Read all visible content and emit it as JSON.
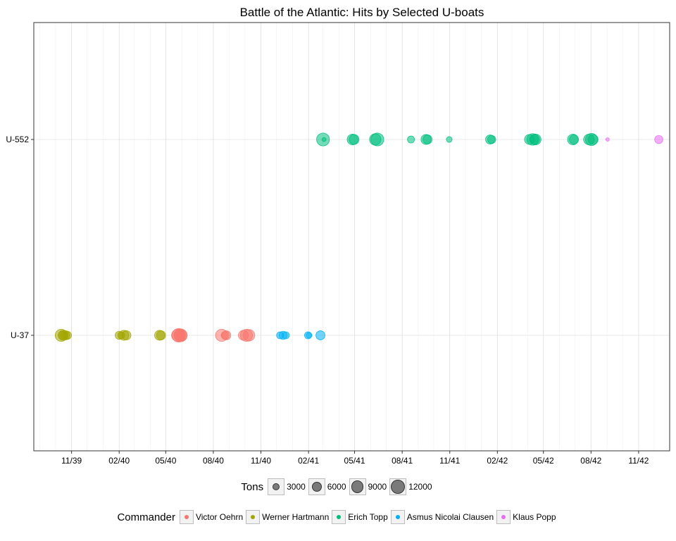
{
  "chart_data": {
    "type": "scatter",
    "title": "Battle of the Atlantic: Hits by Selected U-boats",
    "xlabel": "",
    "ylabel": "",
    "x_range": [
      "1939-08-20",
      "1942-12-31"
    ],
    "x_ticks": [
      {
        "label": "11/39",
        "date": "1939-11-01"
      },
      {
        "label": "02/40",
        "date": "1940-02-01"
      },
      {
        "label": "05/40",
        "date": "1940-05-01"
      },
      {
        "label": "08/40",
        "date": "1940-08-01"
      },
      {
        "label": "11/40",
        "date": "1940-11-01"
      },
      {
        "label": "02/41",
        "date": "1941-02-01"
      },
      {
        "label": "05/41",
        "date": "1941-05-01"
      },
      {
        "label": "08/41",
        "date": "1941-08-01"
      },
      {
        "label": "11/41",
        "date": "1941-11-01"
      },
      {
        "label": "02/42",
        "date": "1942-02-01"
      },
      {
        "label": "05/42",
        "date": "1942-05-01"
      },
      {
        "label": "08/42",
        "date": "1942-08-01"
      },
      {
        "label": "11/42",
        "date": "1942-11-01"
      }
    ],
    "categories": [
      "U-37",
      "U-552"
    ],
    "grid": true,
    "size_legend": {
      "title": "Tons",
      "breaks": [
        3000,
        6000,
        9000,
        12000
      ],
      "labels": [
        "3000",
        "6000",
        "9000",
        "12000"
      ]
    },
    "color_legend": {
      "title": "Commander",
      "placement": "bottom"
    },
    "series": [
      {
        "name": "Victor Oehrn",
        "color": "#F8766D",
        "points": [
          {
            "date": "1940-05-24",
            "boat": "U-37",
            "tons": 9000
          },
          {
            "date": "1940-05-26",
            "boat": "U-37",
            "tons": 11000
          },
          {
            "date": "1940-05-28",
            "boat": "U-37",
            "tons": 8000
          },
          {
            "date": "1940-05-30",
            "boat": "U-37",
            "tons": 10000
          },
          {
            "date": "1940-06-01",
            "boat": "U-37",
            "tons": 7000
          },
          {
            "date": "1940-08-17",
            "boat": "U-37",
            "tons": 9000
          },
          {
            "date": "1940-08-24",
            "boat": "U-37",
            "tons": 4000
          },
          {
            "date": "1940-08-26",
            "boat": "U-37",
            "tons": 5000
          },
          {
            "date": "1940-09-28",
            "boat": "U-37",
            "tons": 6000
          },
          {
            "date": "1940-10-04",
            "boat": "U-37",
            "tons": 9000
          },
          {
            "date": "1940-10-09",
            "boat": "U-37",
            "tons": 8000
          }
        ]
      },
      {
        "name": "Werner Hartmann",
        "color": "#A3A500",
        "points": [
          {
            "date": "1939-10-12",
            "boat": "U-37",
            "tons": 9000
          },
          {
            "date": "1939-10-14",
            "boat": "U-37",
            "tons": 4000
          },
          {
            "date": "1939-10-16",
            "boat": "U-37",
            "tons": 6000
          },
          {
            "date": "1939-10-20",
            "boat": "U-37",
            "tons": 5000
          },
          {
            "date": "1939-10-24",
            "boat": "U-37",
            "tons": 4000
          },
          {
            "date": "1940-02-01",
            "boat": "U-37",
            "tons": 4000
          },
          {
            "date": "1940-02-05",
            "boat": "U-37",
            "tons": 3000
          },
          {
            "date": "1940-02-10",
            "boat": "U-37",
            "tons": 6000
          },
          {
            "date": "1940-02-15",
            "boat": "U-37",
            "tons": 5000
          },
          {
            "date": "1940-04-19",
            "boat": "U-37",
            "tons": 6000
          },
          {
            "date": "1940-04-22",
            "boat": "U-37",
            "tons": 5000
          }
        ]
      },
      {
        "name": "Erich Topp",
        "color": "#00BF7D",
        "points": [
          {
            "date": "1941-03-01",
            "boat": "U-552",
            "tons": 10000
          },
          {
            "date": "1941-03-03",
            "boat": "U-552",
            "tons": 1000
          },
          {
            "date": "1941-04-27",
            "boat": "U-552",
            "tons": 7000
          },
          {
            "date": "1941-04-30",
            "boat": "U-552",
            "tons": 6000
          },
          {
            "date": "1941-06-10",
            "boat": "U-552",
            "tons": 8000
          },
          {
            "date": "1941-06-14",
            "boat": "U-552",
            "tons": 10000
          },
          {
            "date": "1941-08-18",
            "boat": "U-552",
            "tons": 3000
          },
          {
            "date": "1941-09-16",
            "boat": "U-552",
            "tons": 6000
          },
          {
            "date": "1941-09-19",
            "boat": "U-552",
            "tons": 5000
          },
          {
            "date": "1941-10-31",
            "boat": "U-552",
            "tons": 2000
          },
          {
            "date": "1942-01-18",
            "boat": "U-552",
            "tons": 5000
          },
          {
            "date": "1942-01-21",
            "boat": "U-552",
            "tons": 4000
          },
          {
            "date": "1942-04-04",
            "boat": "U-552",
            "tons": 6000
          },
          {
            "date": "1942-04-10",
            "boat": "U-552",
            "tons": 8000
          },
          {
            "date": "1942-04-14",
            "boat": "U-552",
            "tons": 6000
          },
          {
            "date": "1942-04-16",
            "boat": "U-552",
            "tons": 7000
          },
          {
            "date": "1942-06-27",
            "boat": "U-552",
            "tons": 7000
          },
          {
            "date": "1942-06-29",
            "boat": "U-552",
            "tons": 5000
          },
          {
            "date": "1942-07-28",
            "boat": "U-552",
            "tons": 7000
          },
          {
            "date": "1942-08-02",
            "boat": "U-552",
            "tons": 9000
          },
          {
            "date": "1942-08-05",
            "boat": "U-552",
            "tons": 6000
          }
        ]
      },
      {
        "name": "Asmus Nicolai Clausen",
        "color": "#00B0F6",
        "points": [
          {
            "date": "1940-12-08",
            "boat": "U-37",
            "tons": 3000
          },
          {
            "date": "1940-12-14",
            "boat": "U-37",
            "tons": 4000
          },
          {
            "date": "1940-12-19",
            "boat": "U-37",
            "tons": 3000
          },
          {
            "date": "1941-01-31",
            "boat": "U-37",
            "tons": 3000
          },
          {
            "date": "1941-02-02",
            "boat": "U-37",
            "tons": 2000
          },
          {
            "date": "1941-02-24",
            "boat": "U-37",
            "tons": 5000
          }
        ]
      },
      {
        "name": "Klaus Popp",
        "color": "#E76BF3",
        "points": [
          {
            "date": "1942-09-02",
            "boat": "U-552",
            "tons": 700
          },
          {
            "date": "1942-12-10",
            "boat": "U-552",
            "tons": 4000
          }
        ]
      }
    ]
  }
}
